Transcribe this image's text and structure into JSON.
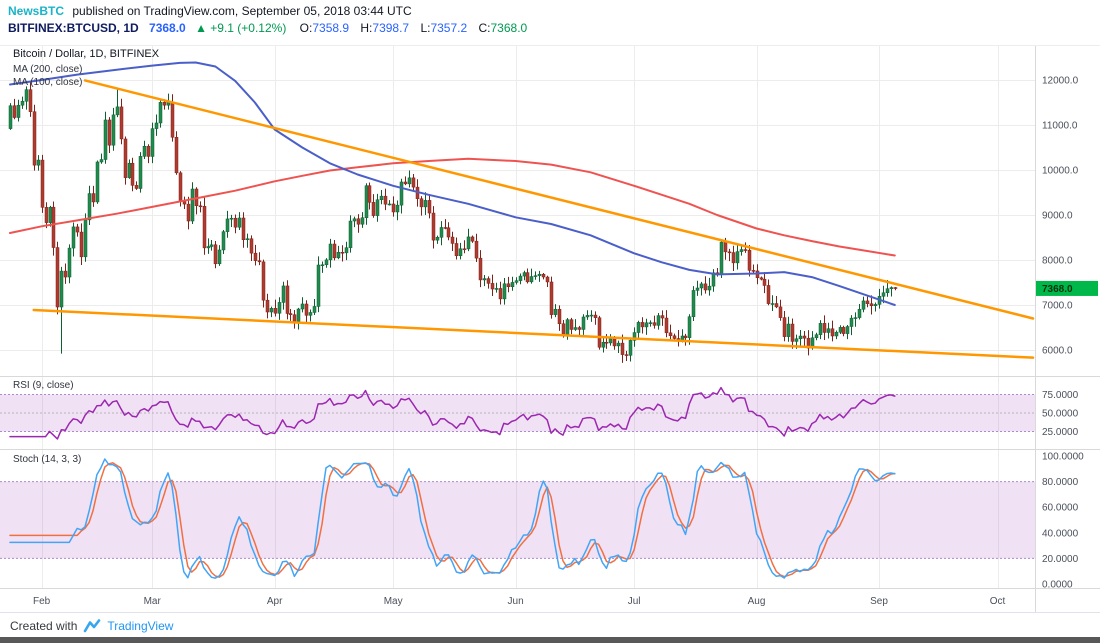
{
  "header": {
    "source": "NewsBTC",
    "published_text": "published on TradingView.com, September 05, 2018 03:44 UTC",
    "symbol": "BITFINEX:BTCUSD, 1D",
    "last_price": "7368.0",
    "change": "▲ +9.1 (+0.12%)",
    "ohlc": {
      "o_label": "O:",
      "o": "7358.9",
      "h_label": "H:",
      "h": "7398.7",
      "l_label": "L:",
      "l": "7357.2",
      "c_label": "C:",
      "c": "7368.0"
    }
  },
  "footer": {
    "created_with": "Created with",
    "brand": "TradingView"
  },
  "colors": {
    "up": "#1f8b4d",
    "up_border": "#0f5f32",
    "down": "#b03a2e",
    "down_border": "#7c241c",
    "ma200": "#ef5350",
    "ma100": "#4a5fc9",
    "trendline": "#ff9800",
    "rsi": "#9c27b0",
    "stoch_k": "#42a5f5",
    "stoch_d": "#f07043",
    "band_fill": "rgba(170,90,200,0.18)",
    "band_line": "#a98cc8",
    "grid": "#ececec",
    "separator": "#d9d9d9",
    "axis_text": "#4a4f5a",
    "last_price_bg": "#00b74a",
    "last_price_text": "#06330f",
    "price_blue": "#2962ff",
    "gain_green": "#009950",
    "symbol_color": "#0f1b5f",
    "publisher": "#1ab4c8",
    "brand_blue": "#2196f3"
  },
  "chart_data": {
    "type": "candlestick",
    "title": "Bitcoin / Dollar, 1D, BITFINEX",
    "legend": {
      "title": "Bitcoin / Dollar, 1D, BITFINEX",
      "ma200": "MA (200, close)",
      "ma100": "MA (100, close)",
      "rsi": "RSI (9, close)",
      "stoch": "Stoch (14, 3, 3)"
    },
    "x_axis": {
      "months": [
        "Feb",
        "Mar",
        "Apr",
        "May",
        "Jun",
        "Jul",
        "Aug",
        "Sep",
        "Oct"
      ],
      "month_day_offsets": [
        8,
        36,
        67,
        97,
        128,
        158,
        189,
        220,
        250
      ],
      "start_date": "2018-01-24",
      "interval": "1D"
    },
    "price_axis": {
      "ticks": [
        12000,
        11000,
        10000,
        9000,
        8000,
        7000,
        6000
      ],
      "last_price": 7368.0
    },
    "candles": {
      "first_open": 10920,
      "closes": [
        11429,
        11166,
        11440,
        11527,
        11786,
        11296,
        10107,
        10221,
        9170,
        8830,
        9174,
        8277,
        6955,
        7754,
        7621,
        8265,
        8736,
        8621,
        8070,
        8891,
        9477,
        9290,
        10178,
        10233,
        11112,
        10551,
        11225,
        11403,
        10690,
        9830,
        10151,
        9659,
        9589,
        10303,
        10528,
        10301,
        10920,
        11045,
        11504,
        11440,
        11514,
        10727,
        9937,
        9299,
        9242,
        8866,
        9578,
        9205,
        9194,
        8269,
        8300,
        8338,
        7916,
        8223,
        8630,
        8913,
        8929,
        8728,
        8934,
        8450,
        8473,
        8152,
        7986,
        7959,
        7107,
        6844,
        6926,
        6816,
        7057,
        7424,
        6811,
        6785,
        6636,
        6911,
        7023,
        6770,
        6834,
        6968,
        7889,
        7895,
        8003,
        8355,
        8048,
        8172,
        8159,
        8274,
        8866,
        8917,
        8795,
        8940,
        9652,
        9281,
        8987,
        9339,
        9419,
        9240,
        9245,
        9067,
        9219,
        9734,
        9692,
        9826,
        9619,
        9362,
        9180,
        9325,
        9043,
        8441,
        8504,
        8723,
        8716,
        8510,
        8368,
        8094,
        8250,
        8247,
        8513,
        8418,
        8041,
        7557,
        7587,
        7480,
        7355,
        7368,
        7135,
        7472,
        7406,
        7502,
        7541,
        7643,
        7720,
        7514,
        7633,
        7653,
        7684,
        7622,
        7512,
        6786,
        6906,
        6583,
        6349,
        6675,
        6456,
        6499,
        6456,
        6734,
        6769,
        6776,
        6717,
        6061,
        6173,
        6157,
        6248,
        6090,
        6153,
        5898,
        5881,
        6214,
        6388,
        6614,
        6513,
        6605,
        6608,
        6547,
        6765,
        6710,
        6382,
        6316,
        6255,
        6222,
        6311,
        6274,
        6740,
        7324,
        7378,
        7470,
        7333,
        7419,
        7717,
        7684,
        8397,
        8181,
        8166,
        7936,
        8187,
        8232,
        8218,
        7769,
        7757,
        7605,
        7573,
        7434,
        7031,
        7033,
        6958,
        6720,
        6297,
        6577,
        6190,
        6249,
        6311,
        6262,
        6042,
        6272,
        6341,
        6592,
        6389,
        6473,
        6311,
        6395,
        6503,
        6364,
        6522,
        6708,
        6720,
        6904,
        7091,
        7029,
        6984,
        7013,
        7193,
        7272,
        7362,
        7388,
        7368
      ],
      "high_overrides": {
        "27": 11788,
        "40": 11697,
        "101": 9990,
        "181": 8491,
        "223": 7413,
        "224": 7399
      },
      "low_overrides": {
        "13": 5920,
        "156": 5755,
        "202": 5880
      }
    },
    "ma200": {
      "label": "MA (200, close)",
      "points": [
        [
          0,
          8600
        ],
        [
          8,
          8750
        ],
        [
          17,
          8880
        ],
        [
          27,
          9030
        ],
        [
          36,
          9180
        ],
        [
          43,
          9300
        ],
        [
          50,
          9420
        ],
        [
          57,
          9540
        ],
        [
          67,
          9750
        ],
        [
          74,
          9870
        ],
        [
          81,
          9990
        ],
        [
          88,
          10060
        ],
        [
          97,
          10150
        ],
        [
          106,
          10200
        ],
        [
          116,
          10250
        ],
        [
          128,
          10200
        ],
        [
          137,
          10120
        ],
        [
          147,
          9950
        ],
        [
          158,
          9650
        ],
        [
          165,
          9450
        ],
        [
          172,
          9250
        ],
        [
          179,
          9000
        ],
        [
          189,
          8700
        ],
        [
          196,
          8550
        ],
        [
          203,
          8420
        ],
        [
          210,
          8300
        ],
        [
          217,
          8200
        ],
        [
          224,
          8100
        ]
      ]
    },
    "ma100": {
      "label": "MA (100, close)",
      "points": [
        [
          0,
          11900
        ],
        [
          8,
          12000
        ],
        [
          17,
          12120
        ],
        [
          27,
          12230
        ],
        [
          36,
          12320
        ],
        [
          43,
          12380
        ],
        [
          47,
          12390
        ],
        [
          52,
          12300
        ],
        [
          57,
          11980
        ],
        [
          62,
          11500
        ],
        [
          67,
          10900
        ],
        [
          74,
          10500
        ],
        [
          81,
          10150
        ],
        [
          88,
          9900
        ],
        [
          97,
          9650
        ],
        [
          106,
          9450
        ],
        [
          116,
          9250
        ],
        [
          128,
          8950
        ],
        [
          137,
          8800
        ],
        [
          147,
          8550
        ],
        [
          158,
          8150
        ],
        [
          165,
          7950
        ],
        [
          172,
          7780
        ],
        [
          179,
          7680
        ],
        [
          189,
          7700
        ],
        [
          196,
          7730
        ],
        [
          203,
          7620
        ],
        [
          210,
          7420
        ],
        [
          220,
          7120
        ],
        [
          224,
          7000
        ]
      ]
    },
    "trendlines": [
      {
        "name": "upper-resistance",
        "from": [
          19,
          11990
        ],
        "to": [
          259,
          6700
        ]
      },
      {
        "name": "lower-support",
        "from": [
          6,
          6890
        ],
        "to": [
          259,
          5830
        ]
      }
    ],
    "rsi": {
      "period": 9,
      "source": "close",
      "band": [
        25,
        75
      ],
      "axis_ticks": [
        75,
        50,
        25
      ]
    },
    "stoch": {
      "k": 14,
      "smooth": 3,
      "d": 3,
      "band": [
        20,
        80
      ],
      "axis_ticks": [
        100,
        80,
        60,
        40,
        20,
        0
      ]
    }
  }
}
